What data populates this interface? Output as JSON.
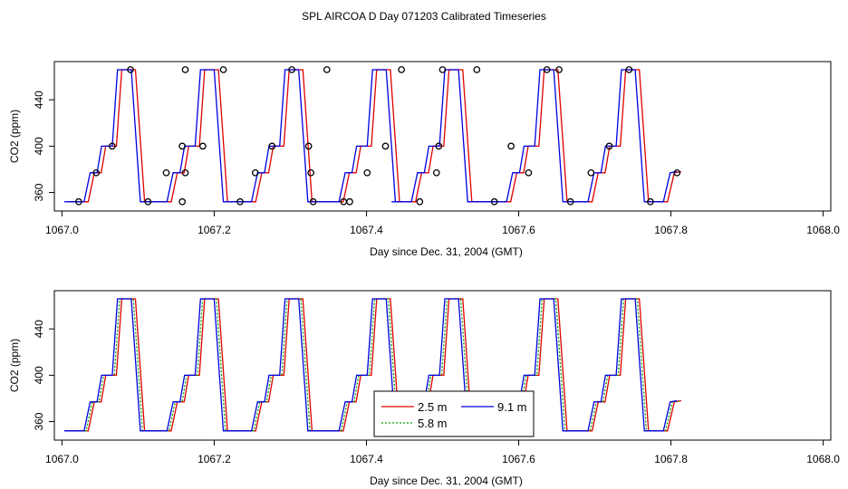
{
  "title": "SPL AIRCOA D  Day 071203  Calibrated Timeseries",
  "colors": {
    "series_2_5": "#e00000",
    "series_5_8": "#00a000",
    "series_9_1": "#0000e0",
    "axis": "#000000",
    "markers": "#000000"
  },
  "chart_data": [
    {
      "type": "line",
      "panel": "top",
      "xlabel": "Day since Dec. 31, 2004 (GMT)",
      "ylabel": "CO2 (ppm)",
      "xlim": [
        1066.99,
        1068.01
      ],
      "ylim": [
        344,
        473
      ],
      "xticks": [
        1067.0,
        1067.2,
        1067.4,
        1067.6,
        1067.8,
        1068.0
      ],
      "xtick_labels": [
        "1067.0",
        "1067.2",
        "1067.4",
        "1067.6",
        "1067.8",
        "1068.0"
      ],
      "yticks": [
        360,
        400,
        440
      ],
      "ytick_labels": [
        "360",
        "400",
        "440"
      ],
      "series": [
        {
          "name": "2.5 m",
          "color": "#e00000",
          "lag": 0.0055
        },
        {
          "name": "9.1 m",
          "color": "#0000e0",
          "lag": 0.0
        }
      ],
      "cycle_start": [
        1067.003,
        1067.112,
        1067.223,
        1067.338,
        1067.433,
        1067.558,
        1067.665
      ],
      "cycle_pattern": [
        {
          "dt": 0.0,
          "v": 352
        },
        {
          "dt": 0.02,
          "v": 352
        },
        {
          "dt": 0.026,
          "v": 352
        },
        {
          "dt": 0.034,
          "v": 377
        },
        {
          "dt": 0.043,
          "v": 377
        },
        {
          "dt": 0.049,
          "v": 400
        },
        {
          "dt": 0.063,
          "v": 400
        },
        {
          "dt": 0.07,
          "v": 466
        },
        {
          "dt": 0.088,
          "v": 466
        },
        {
          "dt": 0.1,
          "v": 352
        }
      ],
      "markers_x": [
        1067.022,
        1067.045,
        1067.066,
        1067.09,
        1067.113,
        1067.137,
        1067.158,
        1067.158,
        1067.162,
        1067.162,
        1067.185,
        1067.212,
        1067.234,
        1067.254,
        1067.276,
        1067.302,
        1067.324,
        1067.327,
        1067.33,
        1067.348,
        1067.37,
        1067.378,
        1067.401,
        1067.425,
        1067.446,
        1067.47,
        1067.492,
        1067.495,
        1067.5,
        1067.545,
        1067.568,
        1067.59,
        1067.613,
        1067.637,
        1067.653,
        1067.668,
        1067.695,
        1067.719,
        1067.745,
        1067.773,
        1067.808
      ],
      "markers_y": [
        352,
        377,
        400,
        466,
        352,
        377,
        352,
        400,
        377,
        466,
        400,
        466,
        352,
        377,
        400,
        466,
        400,
        377,
        352,
        466,
        352,
        352,
        377,
        400,
        466,
        352,
        377,
        400,
        466,
        466,
        352,
        400,
        377,
        466,
        466,
        352,
        377,
        400,
        466,
        352,
        377
      ]
    },
    {
      "type": "line",
      "panel": "bottom",
      "xlabel": "Day since Dec. 31, 2004 (GMT)",
      "ylabel": "CO2 (ppm)",
      "xlim": [
        1066.99,
        1068.01
      ],
      "ylim": [
        344,
        473
      ],
      "xticks": [
        1067.0,
        1067.2,
        1067.4,
        1067.6,
        1067.8,
        1068.0
      ],
      "xtick_labels": [
        "1067.0",
        "1067.2",
        "1067.4",
        "1067.6",
        "1067.8",
        "1068.0"
      ],
      "yticks": [
        360,
        400,
        440
      ],
      "ytick_labels": [
        "360",
        "400",
        "440"
      ],
      "series": [
        {
          "name": "2.5 m",
          "color": "#e00000",
          "lag": 0.0055
        },
        {
          "name": "5.8 m",
          "color": "#00a000",
          "lag": 0.0028
        },
        {
          "name": "9.1 m",
          "color": "#0000e0",
          "lag": 0.0
        }
      ],
      "legend": {
        "placement": "center-bottom",
        "entries": [
          {
            "label": "2.5 m",
            "color": "#e00000",
            "style": "solid"
          },
          {
            "label": "5.8 m",
            "color": "#00a000",
            "style": "dotted"
          },
          {
            "label": "9.1 m",
            "color": "#0000e0",
            "style": "solid"
          }
        ]
      }
    }
  ]
}
